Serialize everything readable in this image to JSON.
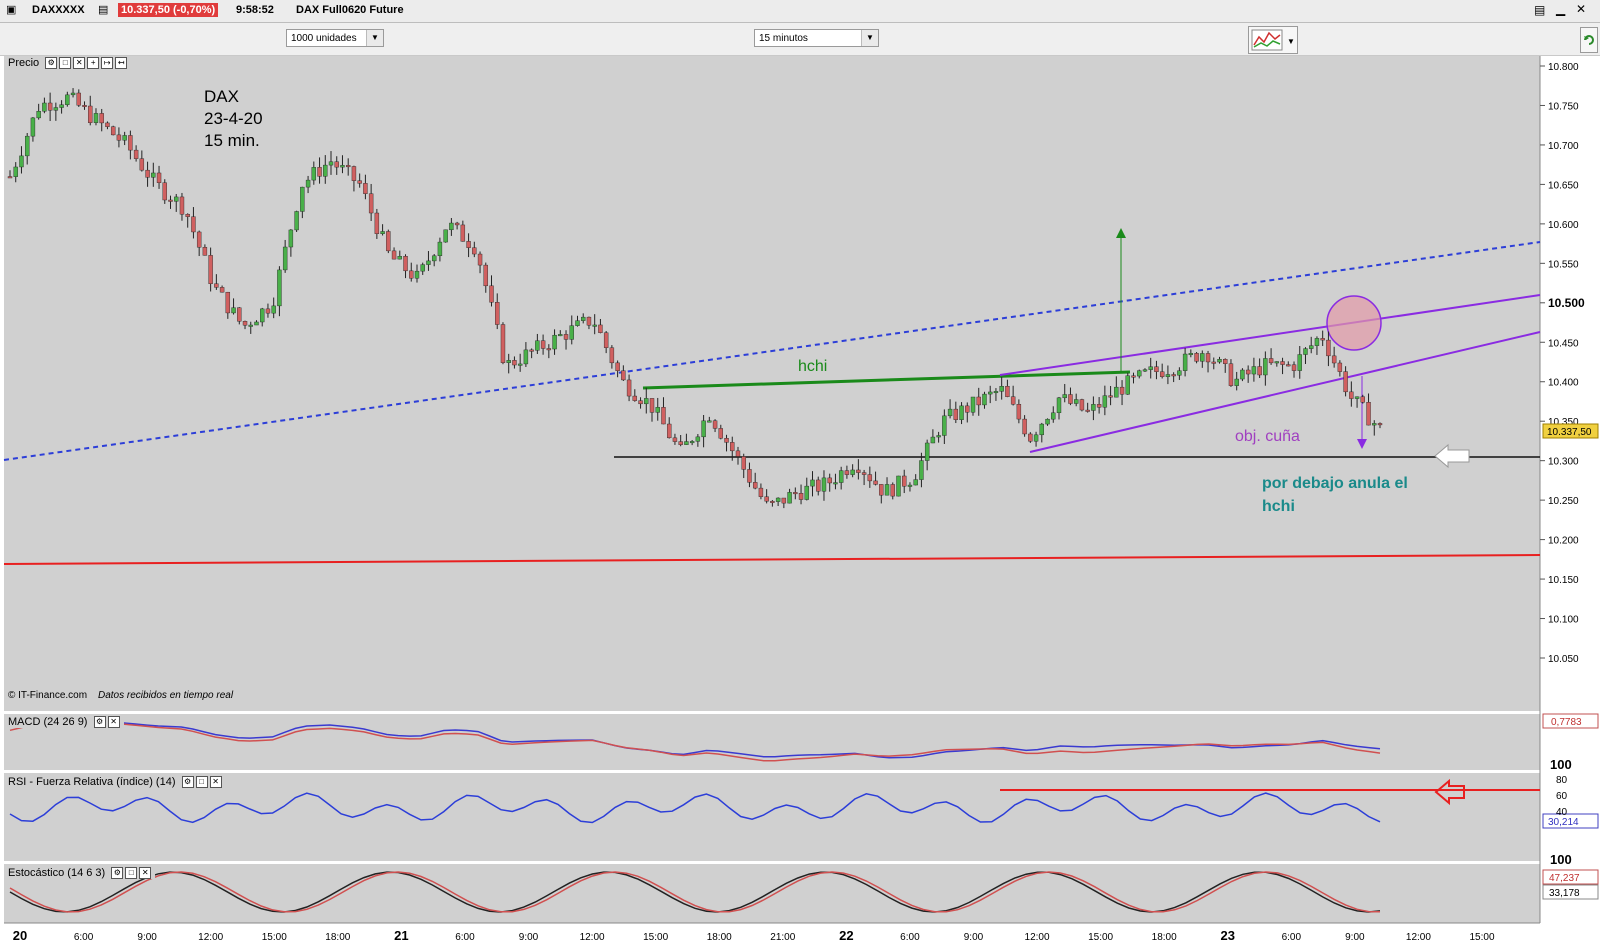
{
  "header": {
    "symbol": "DAXXXXX",
    "last_price_change": "10.337,50 (-0,70%)",
    "time": "9:58:52",
    "instrument": "DAX Full0620 Future"
  },
  "toolbar": {
    "units_select": "1000 unidades",
    "interval_select": "15 minutos"
  },
  "colors": {
    "background": "#d0d0d0",
    "bull_candle": "#49b049",
    "bear_candle": "#d06060",
    "channel": "#8a2be2",
    "neckline": "#1a8a1a",
    "dotted_trend": "#2c3ed8",
    "support_red": "#e82020",
    "annotation_teal": "#1a8a8a"
  },
  "price_panel": {
    "label": "Precio",
    "annotation_title": [
      "DAX",
      "23-4-20",
      "15 min."
    ],
    "labels": {
      "hchi": "hchi",
      "obj": "obj. cuña",
      "note": [
        "por debajo anula el",
        "hchi"
      ]
    },
    "source": "© IT-Finance.com",
    "source_note": "Datos recibidos en tiempo real",
    "y_ticks": [
      "10.800",
      "10.750",
      "10.700",
      "10.650",
      "10.600",
      "10.550",
      "10.500",
      "10.450",
      "10.400",
      "10.350",
      "10.300",
      "10.250",
      "10.200",
      "10.150",
      "10.100",
      "10.050"
    ],
    "last_price_tag": "10.337,50"
  },
  "macd_panel": {
    "label": "MACD (24 26 9)",
    "value_tag": "0,7783"
  },
  "rsi_panel": {
    "label": "RSI - Fuerza Relativa (índice) (14)",
    "y_ticks": [
      "100",
      "80",
      "60",
      "40"
    ],
    "value_tag": "30,214"
  },
  "stoch_panel": {
    "label": "Estocástico (14 6 3)",
    "y_ticks": [
      "100"
    ],
    "value_tags": [
      "47,237",
      "33,178"
    ]
  },
  "x_axis": {
    "labels": [
      "20",
      "6:00",
      "9:00",
      "12:00",
      "15:00",
      "18:00",
      "21",
      "6:00",
      "9:00",
      "12:00",
      "15:00",
      "18:00",
      "21:00",
      "22",
      "6:00",
      "9:00",
      "12:00",
      "15:00",
      "18:00",
      "23",
      "6:00",
      "9:00",
      "12:00",
      "15:00"
    ]
  },
  "chart_data": {
    "type": "candlestick",
    "title": "DAX 23-4-20 15 min.",
    "ylim": [
      10000,
      10820
    ],
    "x": [
      "20",
      "6:00",
      "9:00",
      "12:00",
      "15:00",
      "18:00",
      "21",
      "6:00",
      "9:00",
      "12:00",
      "15:00",
      "18:00",
      "21:00",
      "22",
      "6:00",
      "9:00",
      "12:00",
      "15:00",
      "18:00",
      "23",
      "6:00",
      "9:00",
      "12:00",
      "15:00"
    ],
    "price_path": [
      10660,
      10750,
      10760,
      10730,
      10700,
      10650,
      10620,
      10520,
      10470,
      10500,
      10650,
      10680,
      10650,
      10560,
      10530,
      10600,
      10570,
      10420,
      10440,
      10460,
      10480,
      10400,
      10370,
      10310,
      10360,
      10300,
      10240,
      10260,
      10270,
      10300,
      10260,
      10280,
      10350,
      10370,
      10390,
      10330,
      10380,
      10360,
      10390,
      10410,
      10420,
      10440,
      10400,
      10420,
      10420,
      10460,
      10380,
      10340
    ],
    "lines": [
      {
        "name": "hchi",
        "from": [
          "12:00 d21",
          10390
        ],
        "to": [
          "18:00 d22",
          10412
        ]
      },
      {
        "name": "support",
        "value": 10307
      },
      {
        "name": "channel_upper",
        "from": [
          "9:00 d22",
          10410
        ],
        "to": [
          "15:00 d23",
          10510
        ]
      },
      {
        "name": "channel_lower",
        "from": [
          "12:00 d22",
          10312
        ],
        "to": [
          "15:00 d23",
          10460
        ]
      },
      {
        "name": "dotted_trend",
        "from": [
          "20",
          10300
        ],
        "to": [
          "15:00 d23",
          10578
        ]
      },
      {
        "name": "red_support",
        "from": [
          "20",
          10170
        ],
        "to": [
          "15:00 d23",
          10180
        ]
      }
    ],
    "last_price": 10337.5,
    "rsi_level": 70
  }
}
